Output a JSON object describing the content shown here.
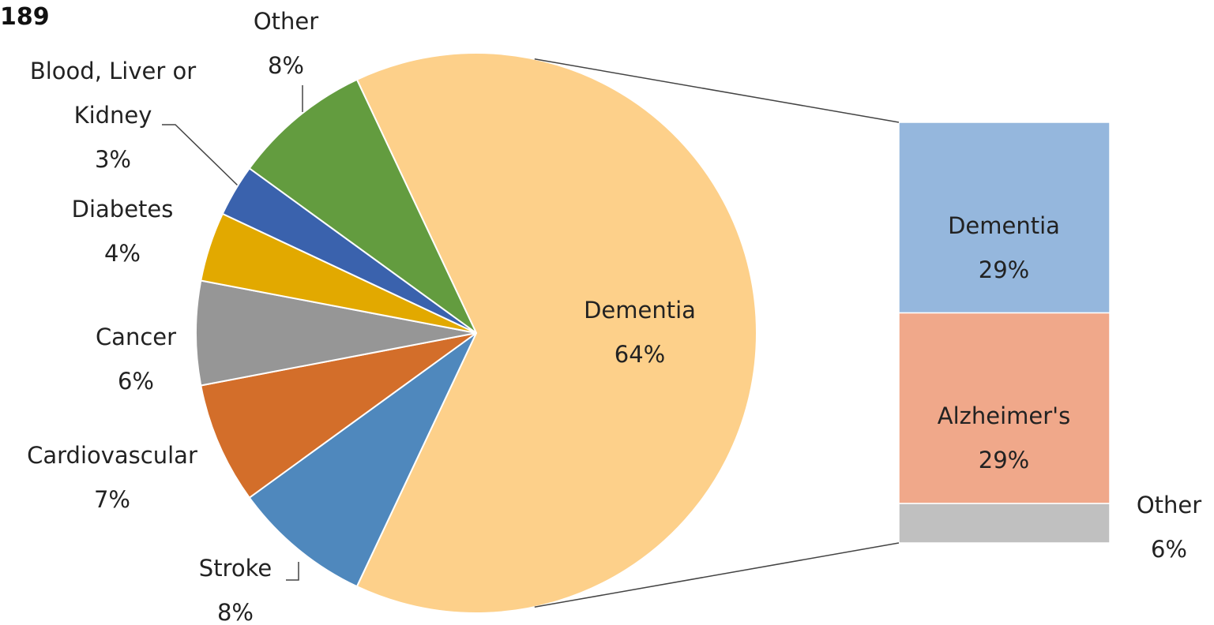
{
  "chart_data": {
    "type": "pie",
    "title": "189",
    "categories": [
      "Dementia",
      "Stroke",
      "Cardiovascular",
      "Cancer",
      "Diabetes",
      "Blood, Liver or Kidney",
      "Other"
    ],
    "values": [
      64,
      8,
      7,
      6,
      4,
      3,
      8
    ],
    "value_labels": [
      "64%",
      "8%",
      "7%",
      "6%",
      "4%",
      "3%",
      "8%"
    ],
    "colors": [
      "#fdd08a",
      "#4f88bd",
      "#d36e2a",
      "#969696",
      "#e2a900",
      "#3a62ad",
      "#639c3f"
    ],
    "breakdown": {
      "categories": [
        "Dementia",
        "Alzheimer's",
        "Other"
      ],
      "values": [
        29,
        29,
        6
      ],
      "value_labels": [
        "29%",
        "29%",
        "6%"
      ],
      "colors": [
        "#95b7dd",
        "#f0a88a",
        "#c0c0c0"
      ]
    }
  }
}
